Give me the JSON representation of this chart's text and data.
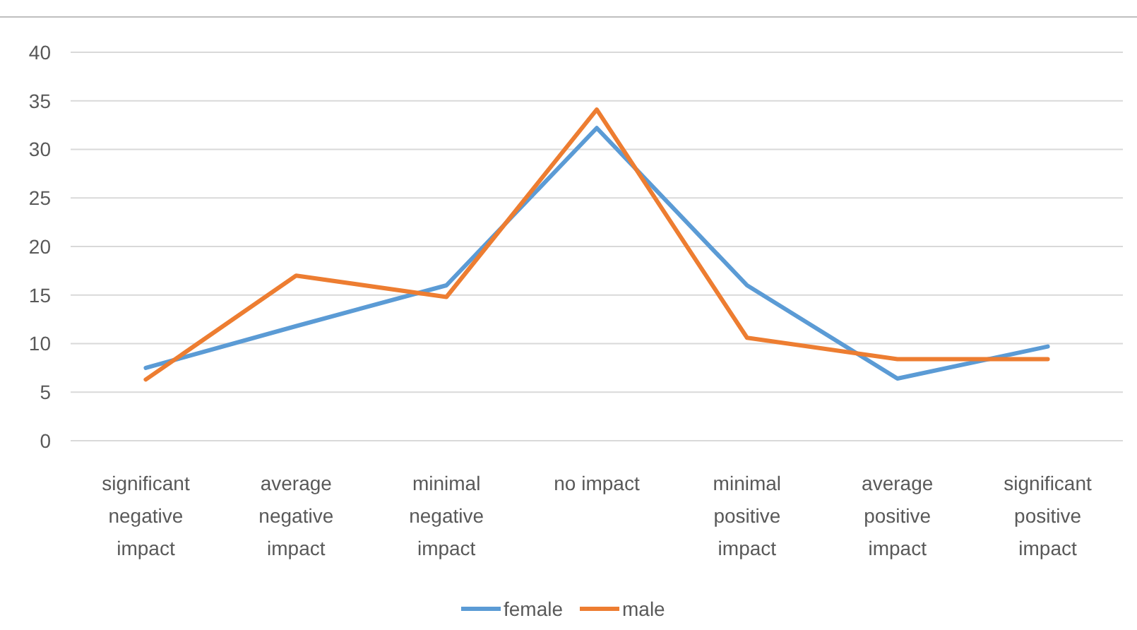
{
  "chart_data": {
    "type": "line",
    "categories": [
      "significant negative impact",
      "average negative impact",
      "minimal negative impact",
      "no impact",
      "minimal positive impact",
      "average positive impact",
      "significant positive impact"
    ],
    "series": [
      {
        "name": "female",
        "color": "#5b9bd5",
        "values": [
          7.5,
          11.8,
          16,
          32.2,
          16,
          6.4,
          9.7
        ]
      },
      {
        "name": "male",
        "color": "#ed7d31",
        "values": [
          6.3,
          17,
          14.8,
          34.1,
          10.6,
          8.4,
          8.4
        ]
      }
    ],
    "ylim": [
      0,
      40
    ],
    "yticks": [
      0,
      5,
      10,
      15,
      20,
      25,
      30,
      35,
      40
    ],
    "grid": "y",
    "legend": "bottom",
    "marker": "none",
    "line_style": "solid"
  }
}
